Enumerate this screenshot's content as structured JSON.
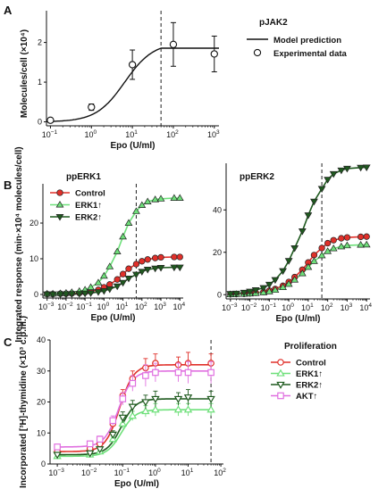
{
  "chart_data": [
    {
      "panel": "A",
      "type": "line",
      "title": "pJAK2",
      "xlabel": "Epo (U/ml)",
      "ylabel": "Molecules/cell (×10⁴)",
      "xscale": "log",
      "xlim": [
        0.08,
        1300
      ],
      "ylim": [
        -0.1,
        2.8
      ],
      "xticks": [
        0.1,
        1,
        10,
        100,
        1000
      ],
      "xtick_labels": [
        "10",
        "10",
        "10",
        "10",
        "10"
      ],
      "xtick_exponents": [
        "−1",
        "0",
        "1",
        "2",
        "3"
      ],
      "yticks": [
        0,
        1,
        2
      ],
      "ytick_labels": [
        "0",
        "1",
        "2"
      ],
      "vline": 50,
      "legend": {
        "position": "top-right",
        "entries": [
          "Model prediction",
          "Experimental data"
        ]
      },
      "series": [
        {
          "name": "Model prediction",
          "kind": "model",
          "model": {
            "bottom": 0,
            "top": 2.0,
            "ec50": 6.5,
            "hill": 1.25,
            "cap_at": 50
          }
        },
        {
          "name": "Experimental data",
          "kind": "points",
          "x": [
            0.1,
            1,
            10,
            100,
            1000
          ],
          "y": [
            0.04,
            0.37,
            1.44,
            1.95,
            1.71
          ],
          "err": [
            0.05,
            0.08,
            0.37,
            0.55,
            0.45
          ]
        }
      ]
    },
    {
      "panel": "B",
      "type": "line",
      "title": "ppERK1",
      "xlabel": "Epo (U/ml)",
      "ylabel": "Integrated response (min·×10⁴ molecules/cell)",
      "xscale": "log",
      "xlim": [
        0.0006,
        15000
      ],
      "ylim": [
        -1,
        31
      ],
      "xticks": [
        0.001,
        0.01,
        0.1,
        1,
        10,
        100,
        1000,
        10000
      ],
      "xtick_labels": [
        "10",
        "10",
        "10",
        "10",
        "10",
        "10",
        "10",
        "10"
      ],
      "xtick_exponents": [
        "−3",
        "−2",
        "−1",
        "0",
        "1",
        "2",
        "3",
        "4"
      ],
      "yticks": [
        0,
        10,
        20
      ],
      "ytick_labels": [
        "0",
        "10",
        "20"
      ],
      "vline": 50,
      "legend": {
        "position": "top-left",
        "entries": [
          "Control",
          "ERK1↑",
          "ERK2↑"
        ]
      },
      "series": [
        {
          "name": "Control",
          "color": "#e0302a",
          "marker": "circle",
          "x": [
            0.001,
            0.002,
            0.005,
            0.01,
            0.02,
            0.05,
            0.1,
            0.2,
            0.5,
            1,
            2,
            5,
            10,
            20,
            50,
            100,
            200,
            500,
            1000,
            5000,
            10000
          ],
          "y": [
            0.1,
            0.1,
            0.2,
            0.2,
            0.3,
            0.4,
            0.6,
            0.8,
            1.3,
            2.0,
            2.8,
            4.2,
            5.7,
            7.2,
            8.5,
            9.3,
            9.8,
            10.2,
            10.4,
            10.5,
            10.5
          ]
        },
        {
          "name": "ERK1↑",
          "color": "#6ee07a",
          "marker": "triangle-up",
          "x": [
            0.001,
            0.002,
            0.005,
            0.01,
            0.02,
            0.05,
            0.1,
            0.2,
            0.5,
            1,
            2,
            5,
            10,
            20,
            50,
            100,
            200,
            500,
            1000,
            5000,
            10000
          ],
          "y": [
            0.2,
            0.2,
            0.3,
            0.4,
            0.6,
            0.9,
            1.3,
            2.0,
            3.3,
            5.2,
            7.8,
            12.0,
            16.2,
            20.0,
            23.3,
            25.0,
            26.0,
            26.6,
            26.8,
            27.0,
            27.0
          ]
        },
        {
          "name": "ERK2↑",
          "color": "#1f5a1f",
          "marker": "triangle-down",
          "x": [
            0.001,
            0.002,
            0.005,
            0.01,
            0.02,
            0.05,
            0.1,
            0.2,
            0.5,
            1,
            2,
            5,
            10,
            20,
            50,
            100,
            200,
            500,
            1000,
            5000,
            10000
          ],
          "y": [
            0.05,
            0.05,
            0.1,
            0.1,
            0.15,
            0.2,
            0.3,
            0.4,
            0.7,
            1.0,
            1.5,
            2.3,
            3.3,
            4.5,
            5.6,
            6.4,
            7.0,
            7.3,
            7.5,
            7.6,
            7.6
          ]
        }
      ]
    },
    {
      "panel": "B",
      "type": "line",
      "title": "ppERK2",
      "xlabel": "Epo (U/ml)",
      "ylabel": "",
      "xscale": "log",
      "xlim": [
        0.0006,
        15000
      ],
      "ylim": [
        -2,
        62
      ],
      "xticks": [
        0.001,
        0.01,
        0.1,
        1,
        10,
        100,
        1000,
        10000
      ],
      "xtick_labels": [
        "10",
        "10",
        "10",
        "10",
        "10",
        "10",
        "10",
        "10"
      ],
      "xtick_exponents": [
        "−3",
        "−2",
        "−1",
        "0",
        "1",
        "2",
        "3",
        "4"
      ],
      "yticks": [
        0,
        20,
        40
      ],
      "ytick_labels": [
        "0",
        "20",
        "40"
      ],
      "vline": 50,
      "series": [
        {
          "name": "Control",
          "color": "#e0302a",
          "marker": "circle",
          "x": [
            0.001,
            0.002,
            0.005,
            0.01,
            0.02,
            0.05,
            0.1,
            0.2,
            0.5,
            1,
            2,
            5,
            10,
            20,
            50,
            100,
            200,
            500,
            1000,
            5000,
            10000
          ],
          "y": [
            0.2,
            0.3,
            0.4,
            0.6,
            0.9,
            1.3,
            1.9,
            2.7,
            4.2,
            6.0,
            8.3,
            11.8,
            15.2,
            18.7,
            22.0,
            24.3,
            25.7,
            26.6,
            27.0,
            27.3,
            27.4
          ]
        },
        {
          "name": "ERK1↑",
          "color": "#6ee07a",
          "marker": "triangle-up",
          "x": [
            0.001,
            0.002,
            0.005,
            0.01,
            0.02,
            0.05,
            0.1,
            0.2,
            0.5,
            1,
            2,
            5,
            10,
            20,
            50,
            100,
            200,
            500,
            1000,
            5000,
            10000
          ],
          "y": [
            0.1,
            0.2,
            0.3,
            0.5,
            0.7,
            1.0,
            1.5,
            2.2,
            3.5,
            5.0,
            7.0,
            10.0,
            13.0,
            15.8,
            18.5,
            20.5,
            21.8,
            22.7,
            23.2,
            23.5,
            23.6
          ]
        },
        {
          "name": "ERK2↑",
          "color": "#1f5a1f",
          "marker": "triangle-down",
          "x": [
            0.001,
            0.002,
            0.005,
            0.01,
            0.02,
            0.05,
            0.1,
            0.2,
            0.5,
            1,
            2,
            5,
            10,
            20,
            50,
            100,
            200,
            500,
            1000,
            5000,
            10000
          ],
          "y": [
            0.4,
            0.6,
            1.0,
            1.5,
            2.2,
            3.2,
            4.8,
            7.0,
            11.2,
            16.0,
            22.0,
            30.0,
            37.5,
            44.0,
            50.0,
            54.3,
            57.0,
            58.7,
            59.5,
            60.0,
            60.1
          ]
        }
      ]
    },
    {
      "panel": "C",
      "type": "line",
      "title": "Proliferation",
      "xlabel": "Epo (U/ml)",
      "ylabel": "Incorporated [³H]-thymidine (×10³ c.p.m.)",
      "xscale": "log",
      "xlim": [
        0.0006,
        120
      ],
      "ylim": [
        0,
        40
      ],
      "xticks": [
        0.001,
        0.01,
        0.1,
        1,
        10,
        100
      ],
      "xtick_labels": [
        "10",
        "10",
        "10",
        "10",
        "10",
        "10"
      ],
      "xtick_exponents": [
        "−3",
        "−2",
        "−1",
        "0",
        "1",
        "2"
      ],
      "yticks": [
        0,
        10,
        20,
        30,
        40
      ],
      "ytick_labels": [
        "0",
        "10",
        "20",
        "30",
        "40"
      ],
      "vline": 50,
      "legend": {
        "position": "top-right",
        "entries": [
          "Control",
          "ERK1↑",
          "ERK2↑",
          "AKT↑"
        ]
      },
      "series": [
        {
          "name": "Control",
          "color": "#e0302a",
          "marker": "circle-open",
          "model": {
            "bottom": 4.0,
            "top": 32.0,
            "ec50": 0.08,
            "hill": 2.0
          },
          "x": [
            0.001,
            0.01,
            0.02,
            0.05,
            0.1,
            0.2,
            0.5,
            1,
            5,
            10,
            50
          ],
          "y": [
            4.0,
            5.0,
            6.5,
            13.0,
            22.0,
            27.5,
            31.0,
            32.5,
            32.0,
            32.5,
            32.5
          ],
          "err": [
            0.6,
            0.6,
            0.8,
            1.2,
            2.0,
            2.5,
            3.0,
            3.0,
            2.5,
            3.5,
            3.0
          ]
        },
        {
          "name": "ERK1↑",
          "color": "#6ee07a",
          "marker": "triangle-up-open",
          "model": {
            "bottom": 2.5,
            "top": 17.5,
            "ec50": 0.09,
            "hill": 2.0
          },
          "x": [
            0.001,
            0.01,
            0.02,
            0.05,
            0.1,
            0.2,
            0.5,
            1,
            5,
            10,
            50
          ],
          "y": [
            2.5,
            3.0,
            4.0,
            8.0,
            13.0,
            15.5,
            17.0,
            17.5,
            17.5,
            17.5,
            17.5
          ],
          "err": [
            0.5,
            0.5,
            0.6,
            1.0,
            1.5,
            1.5,
            1.8,
            2.0,
            2.0,
            2.0,
            2.0
          ]
        },
        {
          "name": "ERK2↑",
          "color": "#1f5a1f",
          "marker": "triangle-down-open",
          "model": {
            "bottom": 3.0,
            "top": 21.0,
            "ec50": 0.09,
            "hill": 2.0
          },
          "x": [
            0.001,
            0.01,
            0.02,
            0.05,
            0.1,
            0.2,
            0.5,
            1,
            5,
            10,
            50
          ],
          "y": [
            3.0,
            3.5,
            4.8,
            9.5,
            15.0,
            18.5,
            20.0,
            21.0,
            21.0,
            21.5,
            21.0
          ],
          "err": [
            0.5,
            0.6,
            0.7,
            1.2,
            1.8,
            2.0,
            2.2,
            2.5,
            2.0,
            2.5,
            2.5
          ]
        },
        {
          "name": "AKT↑",
          "color": "#e070e0",
          "marker": "square-open",
          "model": {
            "bottom": 5.5,
            "top": 30.0,
            "ec50": 0.075,
            "hill": 2.0
          },
          "x": [
            0.001,
            0.01,
            0.02,
            0.05,
            0.1,
            0.2,
            0.5,
            1,
            5,
            10,
            50
          ],
          "y": [
            5.5,
            6.5,
            8.0,
            14.0,
            21.0,
            26.0,
            28.5,
            29.5,
            29.5,
            29.5,
            29.5
          ],
          "err": [
            0.8,
            0.8,
            1.0,
            1.5,
            2.0,
            2.5,
            3.5,
            3.0,
            3.0,
            3.5,
            3.5
          ]
        }
      ]
    }
  ]
}
